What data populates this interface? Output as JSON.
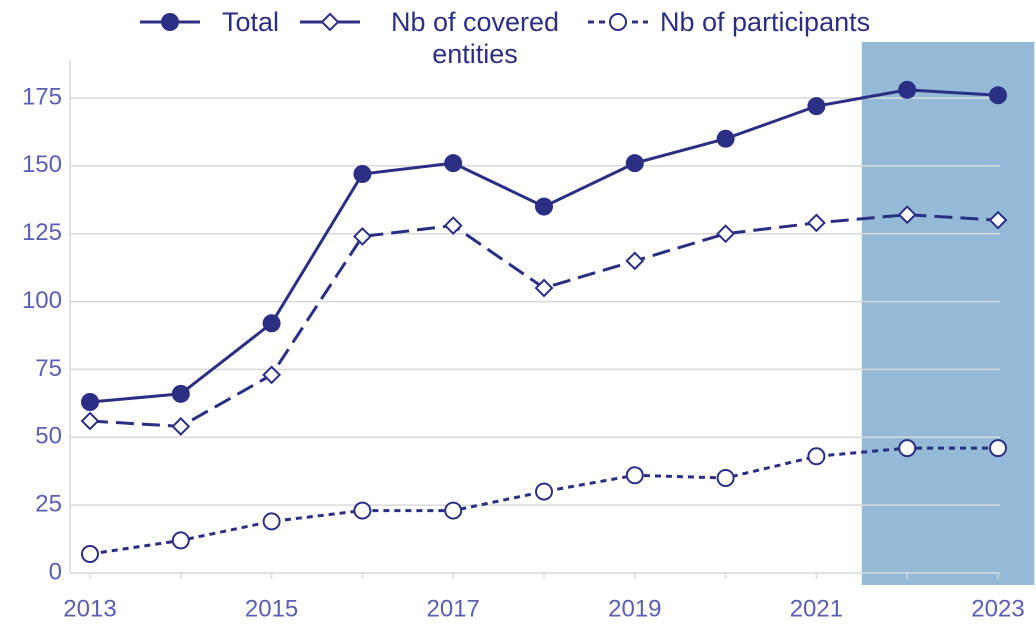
{
  "chart_data": {
    "type": "line",
    "x": [
      2013,
      2014,
      2015,
      2016,
      2017,
      2018,
      2019,
      2020,
      2021,
      2022,
      2023
    ],
    "series": [
      {
        "name": "Total",
        "color": "#2b2f83",
        "values": [
          63,
          66,
          92,
          147,
          151,
          135,
          151,
          160,
          172,
          178,
          176
        ]
      },
      {
        "name": "Nb of covered entities",
        "color": "#2b2f83",
        "values": [
          56,
          54,
          73,
          124,
          128,
          105,
          115,
          125,
          129,
          132,
          130
        ]
      },
      {
        "name": "Nb of participants",
        "color": "#2b2f83",
        "values": [
          7,
          12,
          19,
          23,
          23,
          30,
          36,
          35,
          43,
          46,
          46
        ]
      }
    ],
    "xlim": [
      2013,
      2023
    ],
    "xticks": [
      2013,
      2015,
      2017,
      2019,
      2021,
      2023
    ],
    "ylim": [
      0,
      189
    ],
    "yticks": [
      0,
      25,
      50,
      75,
      100,
      125,
      150,
      175
    ],
    "grid": true,
    "highlight": {
      "xlim": [
        2021.5,
        2023.4
      ],
      "color": "#94bad8"
    }
  }
}
